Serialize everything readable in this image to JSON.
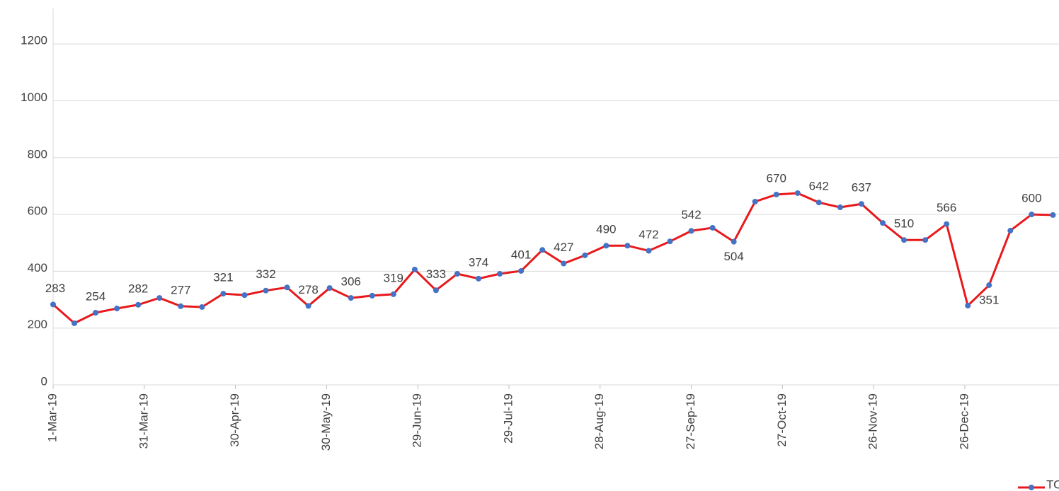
{
  "chart_data": {
    "type": "line",
    "x": [
      "2019-03-01",
      "2019-03-08",
      "2019-03-15",
      "2019-03-22",
      "2019-03-29",
      "2019-04-05",
      "2019-04-12",
      "2019-04-19",
      "2019-04-26",
      "2019-05-03",
      "2019-05-10",
      "2019-05-17",
      "2019-05-24",
      "2019-05-31",
      "2019-06-07",
      "2019-06-14",
      "2019-06-21",
      "2019-06-28",
      "2019-07-05",
      "2019-07-12",
      "2019-07-19",
      "2019-07-26",
      "2019-08-02",
      "2019-08-09",
      "2019-08-16",
      "2019-08-23",
      "2019-08-30",
      "2019-09-06",
      "2019-09-13",
      "2019-09-20",
      "2019-09-27",
      "2019-10-04",
      "2019-10-11",
      "2019-10-18",
      "2019-10-25",
      "2019-11-01",
      "2019-11-08",
      "2019-11-15",
      "2019-11-22",
      "2019-11-29",
      "2019-12-06",
      "2019-12-13",
      "2019-12-20",
      "2019-12-27",
      "2020-01-03",
      "2020-01-10",
      "2020-01-17",
      "2020-01-24"
    ],
    "series": [
      {
        "name": "TOTAL",
        "color": "#e8191c",
        "marker_color": "#4472c4",
        "values": [
          283,
          217,
          254,
          269,
          282,
          306,
          277,
          274,
          321,
          316,
          332,
          343,
          278,
          341,
          306,
          314,
          319,
          406,
          333,
          391,
          374,
          391,
          401,
          475,
          427,
          456,
          490,
          490,
          472,
          505,
          542,
          553,
          504,
          645,
          670,
          675,
          642,
          625,
          637,
          570,
          510,
          510,
          566,
          279,
          351,
          543,
          600,
          598
        ],
        "value_labels": [
          "283",
          null,
          "254",
          null,
          "282",
          null,
          "277",
          null,
          "321",
          null,
          "332",
          null,
          "278",
          null,
          "306",
          null,
          "319",
          null,
          "333",
          null,
          "374",
          null,
          "401",
          null,
          "427",
          null,
          "490",
          null,
          "472",
          null,
          "542",
          null,
          "504",
          null,
          "670",
          null,
          "642",
          null,
          "637",
          null,
          "510",
          null,
          "566",
          null,
          "351",
          null,
          "600",
          null
        ]
      }
    ],
    "xlim": [
      "2019-03-01",
      "2020-01-25"
    ],
    "xticks": [
      {
        "value": "2019-03-01",
        "label": "1-Mar-19"
      },
      {
        "value": "2019-03-31",
        "label": "31-Mar-19"
      },
      {
        "value": "2019-04-30",
        "label": "30-Apr-19"
      },
      {
        "value": "2019-05-30",
        "label": "30-May-19"
      },
      {
        "value": "2019-06-29",
        "label": "29-Jun-19"
      },
      {
        "value": "2019-07-29",
        "label": "29-Jul-19"
      },
      {
        "value": "2019-08-28",
        "label": "28-Aug-19"
      },
      {
        "value": "2019-09-27",
        "label": "27-Sep-19"
      },
      {
        "value": "2019-10-27",
        "label": "27-Oct-19"
      },
      {
        "value": "2019-11-26",
        "label": "26-Nov-19"
      },
      {
        "value": "2019-12-26",
        "label": "26-Dec-19"
      }
    ],
    "ylim": [
      0,
      1300
    ],
    "yticks": [
      0,
      200,
      400,
      600,
      800,
      1000,
      1200
    ],
    "grid": true,
    "legend": "bottom-right"
  }
}
